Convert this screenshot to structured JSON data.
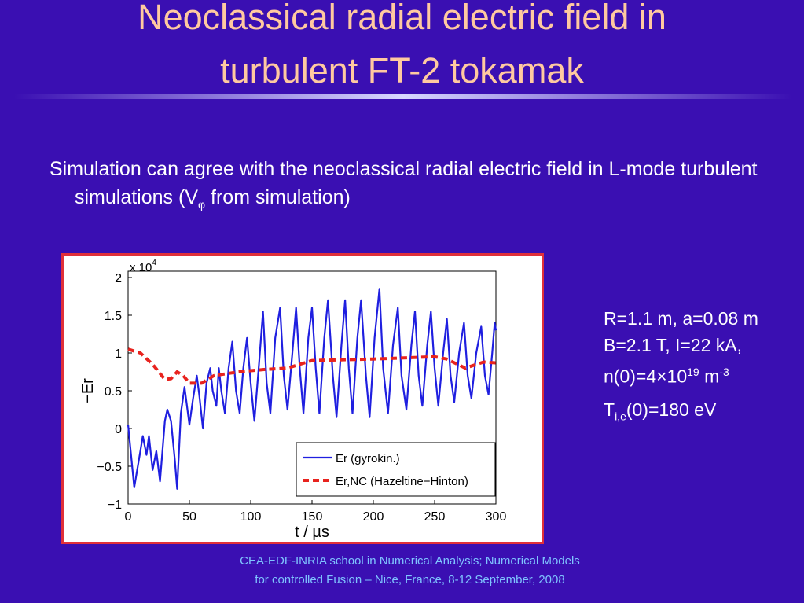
{
  "slide": {
    "title_lines": [
      "Neoclassical radial electric field in",
      "turbulent FT-2 tokamak"
    ],
    "bullet": {
      "before": "Simulation can agree with the neoclassical radial electric field in L-mode turbulent simulations (V",
      "sub": "φ",
      "after": " from simulation)"
    },
    "params": [
      {
        "text": "R=1.1 m, a=0.08 m B=2.1 T, I=22 kA, n(0)=4×10",
        "sup": "19",
        "text2": " m",
        "sup2": "-3"
      },
      {
        "text": "T",
        "sub": "i,e",
        "text2": "(0)=180 eV"
      }
    ],
    "footer_lines": [
      "CEA-EDF-INRIA school in Numerical Analysis; Numerical Models",
      "for controlled Fusion – Nice, France, 8-12 September,  2008"
    ]
  },
  "chart_data": {
    "type": "line",
    "xlabel": "t / µs",
    "ylabel": "−Er",
    "y_scale_label": "x 10",
    "y_scale_exponent": "4",
    "xlim": [
      0,
      300
    ],
    "xticks": [
      0,
      50,
      100,
      150,
      200,
      250,
      300
    ],
    "ylim": [
      -1,
      2
    ],
    "yticks": [
      {
        "value": -1,
        "label": "−1"
      },
      {
        "value": -0.5,
        "label": "−0.5"
      },
      0,
      0.5,
      1,
      1.5,
      2
    ],
    "legend": "lower right",
    "series": [
      {
        "name": "Er (gyrokin.)",
        "color": "#1f1fe0",
        "dash": false,
        "x": [
          0,
          5,
          10,
          12,
          15,
          17,
          20,
          23,
          26,
          30,
          32,
          35,
          38,
          40,
          43,
          46,
          48,
          50,
          53,
          56,
          58,
          61,
          64,
          67,
          69,
          72,
          74,
          76,
          79,
          82,
          85,
          88,
          91,
          94,
          97,
          100,
          103,
          107,
          110,
          113,
          116,
          120,
          124,
          127,
          130,
          134,
          137,
          140,
          143,
          147,
          150,
          153,
          156,
          160,
          163,
          167,
          170,
          174,
          177,
          180,
          183,
          187,
          190,
          194,
          197,
          201,
          205,
          208,
          212,
          216,
          220,
          223,
          227,
          231,
          234,
          237,
          240,
          244,
          247,
          250,
          253,
          257,
          260,
          263,
          266,
          270,
          274,
          277,
          280,
          284,
          288,
          291,
          294,
          297,
          299,
          300
        ],
        "values": [
          0.05,
          -0.78,
          -0.3,
          -0.1,
          -0.35,
          -0.1,
          -0.55,
          -0.3,
          -0.7,
          0.1,
          0.25,
          0.1,
          -0.4,
          -0.8,
          0.2,
          0.55,
          0.3,
          0.05,
          0.4,
          0.7,
          0.45,
          0.0,
          0.6,
          0.8,
          0.5,
          0.3,
          0.8,
          0.5,
          0.2,
          0.8,
          1.15,
          0.5,
          0.2,
          0.8,
          1.2,
          0.6,
          0.1,
          0.9,
          1.55,
          0.6,
          0.2,
          1.2,
          1.6,
          0.7,
          0.25,
          1.0,
          1.6,
          0.8,
          0.2,
          1.2,
          1.6,
          0.8,
          0.2,
          1.2,
          1.7,
          0.7,
          0.15,
          1.1,
          1.7,
          0.8,
          0.2,
          1.2,
          1.7,
          0.7,
          0.15,
          1.2,
          1.85,
          0.8,
          0.2,
          1.1,
          1.6,
          0.7,
          0.25,
          1.1,
          1.55,
          0.7,
          0.3,
          1.1,
          1.55,
          0.8,
          0.3,
          1.0,
          1.45,
          0.7,
          0.35,
          1.0,
          1.4,
          0.7,
          0.4,
          1.0,
          1.35,
          0.7,
          0.45,
          1.0,
          1.4,
          1.3
        ]
      },
      {
        "name": "Er,NC (Hazeltine−Hinton)",
        "color": "#e8231e",
        "dash": true,
        "x": [
          0,
          10,
          20,
          30,
          35,
          40,
          45,
          50,
          60,
          70,
          90,
          110,
          130,
          150,
          200,
          250,
          260,
          275,
          290,
          300
        ],
        "values": [
          1.05,
          1.0,
          0.85,
          0.65,
          0.66,
          0.75,
          0.7,
          0.6,
          0.6,
          0.7,
          0.75,
          0.78,
          0.8,
          0.9,
          0.92,
          0.95,
          0.92,
          0.8,
          0.88,
          0.87
        ]
      }
    ]
  }
}
